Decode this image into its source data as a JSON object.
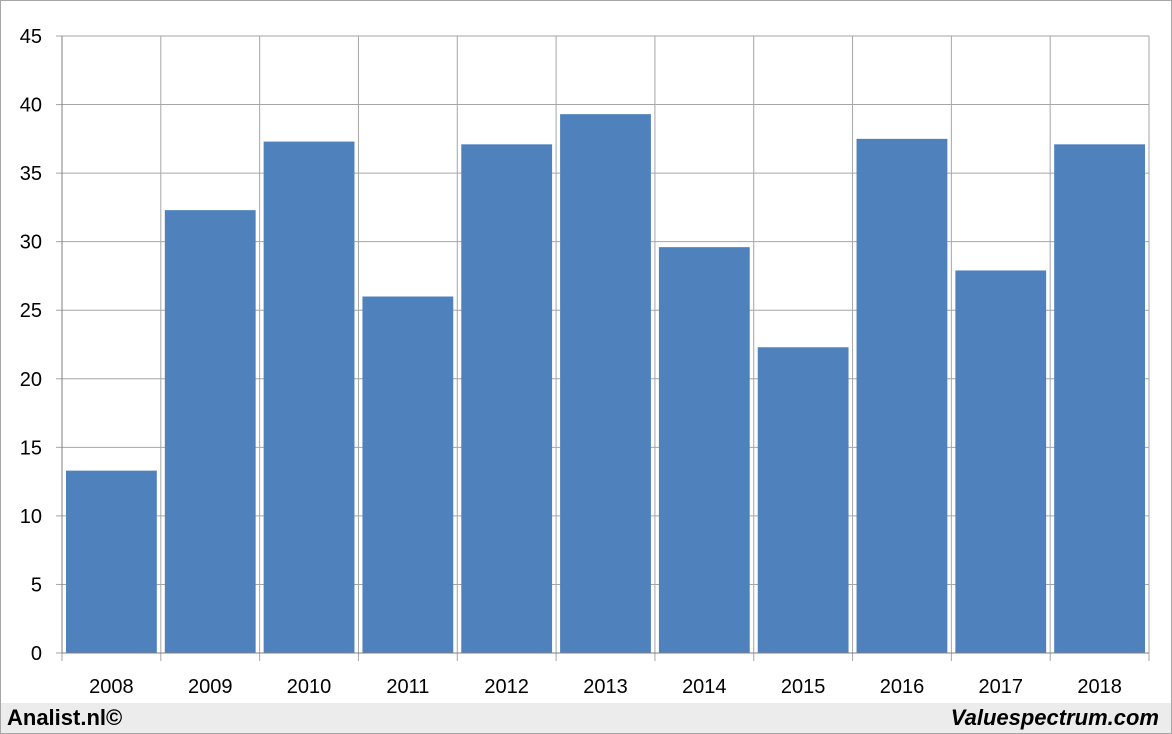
{
  "chart_data": {
    "type": "bar",
    "categories": [
      "2008",
      "2009",
      "2010",
      "2011",
      "2012",
      "2013",
      "2014",
      "2015",
      "2016",
      "2017",
      "2018"
    ],
    "values": [
      13.3,
      32.3,
      37.3,
      26.0,
      37.1,
      39.3,
      29.6,
      22.3,
      37.5,
      27.9,
      37.1
    ],
    "yticks": [
      "0",
      "5",
      "10",
      "15",
      "20",
      "25",
      "30",
      "35",
      "40",
      "45"
    ],
    "ylim": [
      0,
      45
    ],
    "ytick_step": 5,
    "grid": true,
    "bar_color": "#4f81bd",
    "grid_color": "#a6a6a6"
  },
  "footer": {
    "left_text": "Analist.nl©",
    "right_text": "Valuespectrum.com"
  }
}
